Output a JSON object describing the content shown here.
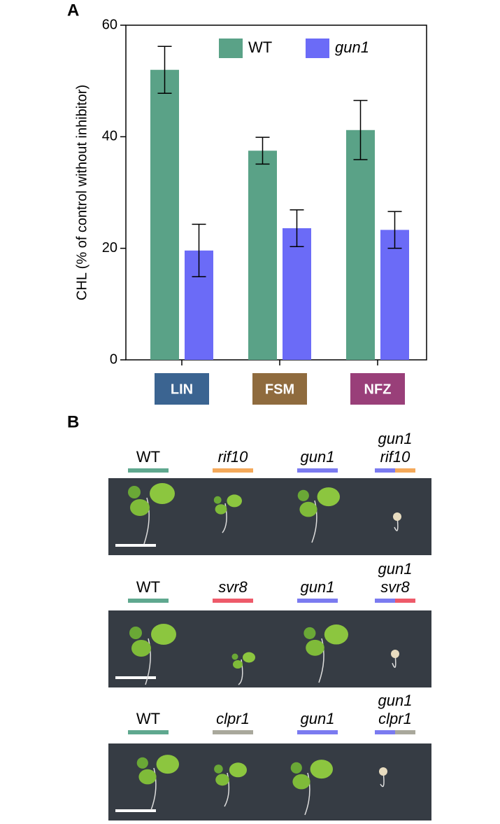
{
  "chart_data": {
    "type": "bar",
    "panel_label": "A",
    "y_label": "CHL (% of control without inhibitor)",
    "categories": [
      "LIN",
      "FSM",
      "NFZ"
    ],
    "category_colors": [
      "#3b6491",
      "#8f6b3e",
      "#993f79"
    ],
    "series": [
      {
        "name": "WT",
        "color": "#5aa287",
        "italic": false,
        "values": [
          52,
          37.5,
          41.2
        ],
        "errors": [
          4.2,
          2.4,
          5.3
        ]
      },
      {
        "name": "gun1",
        "color": "#6b6bf7",
        "italic": true,
        "values": [
          19.6,
          23.6,
          23.3
        ],
        "errors": [
          4.7,
          3.3,
          3.3
        ]
      }
    ],
    "ylim": [
      0,
      60
    ],
    "yticks": [
      0,
      20,
      40,
      60
    ],
    "grid": false
  },
  "panel_b": {
    "label": "B",
    "rows": [
      {
        "genotypes": [
          {
            "lines": [
              "WT"
            ],
            "italic": false,
            "colors": [
              "#5fa88f"
            ]
          },
          {
            "lines": [
              "rif10"
            ],
            "italic": true,
            "colors": [
              "#f4a95a"
            ]
          },
          {
            "lines": [
              "gun1"
            ],
            "italic": true,
            "colors": [
              "#7b7bf0"
            ]
          },
          {
            "lines": [
              "gun1",
              "rif10"
            ],
            "italic": true,
            "colors": [
              "#7b7bf0",
              "#f4a95a"
            ]
          }
        ]
      },
      {
        "genotypes": [
          {
            "lines": [
              "WT"
            ],
            "italic": false,
            "colors": [
              "#5fa88f"
            ]
          },
          {
            "lines": [
              "svr8"
            ],
            "italic": true,
            "colors": [
              "#ee5a6a"
            ]
          },
          {
            "lines": [
              "gun1"
            ],
            "italic": true,
            "colors": [
              "#7b7bf0"
            ]
          },
          {
            "lines": [
              "gun1",
              "svr8"
            ],
            "italic": true,
            "colors": [
              "#7b7bf0",
              "#ee5a6a"
            ]
          }
        ]
      },
      {
        "genotypes": [
          {
            "lines": [
              "WT"
            ],
            "italic": false,
            "colors": [
              "#5fa88f"
            ]
          },
          {
            "lines": [
              "clpr1"
            ],
            "italic": true,
            "colors": [
              "#a9a89c"
            ]
          },
          {
            "lines": [
              "gun1"
            ],
            "italic": true,
            "colors": [
              "#7b7bf0"
            ]
          },
          {
            "lines": [
              "gun1",
              "clpr1"
            ],
            "italic": true,
            "colors": [
              "#7b7bf0",
              "#a9a89c"
            ]
          }
        ]
      }
    ]
  }
}
